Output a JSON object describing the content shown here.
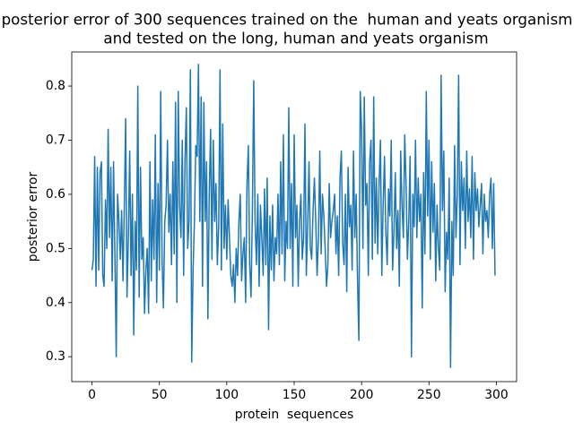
{
  "chart_data": {
    "type": "line",
    "title": [
      "posterior error of 300 sequences trained on the  human and yeats organism",
      "and tested on the long, human and yeats organism"
    ],
    "x_label": "protein  sequences",
    "y_label": "posterior error",
    "xlim": [
      -15,
      315
    ],
    "ylim": [
      0.254,
      0.863
    ],
    "xticks": [
      0,
      50,
      100,
      150,
      200,
      250,
      300
    ],
    "yticks": [
      0.3,
      0.4,
      0.5,
      0.6,
      0.7,
      0.8
    ],
    "grid": false,
    "series": [
      {
        "color": "#1f77b4",
        "x": [
          0,
          1,
          2,
          3,
          4,
          5,
          6,
          7,
          8,
          9,
          10,
          11,
          12,
          13,
          14,
          15,
          16,
          17,
          18,
          19,
          20,
          21,
          22,
          23,
          24,
          25,
          26,
          27,
          28,
          29,
          30,
          31,
          32,
          33,
          34,
          35,
          36,
          37,
          38,
          39,
          40,
          41,
          42,
          43,
          44,
          45,
          46,
          47,
          48,
          49,
          50,
          51,
          52,
          53,
          54,
          55,
          56,
          57,
          58,
          59,
          60,
          61,
          62,
          63,
          64,
          65,
          66,
          67,
          68,
          69,
          70,
          71,
          72,
          73,
          74,
          75,
          76,
          77,
          78,
          79,
          80,
          81,
          82,
          83,
          84,
          85,
          86,
          87,
          88,
          89,
          90,
          91,
          92,
          93,
          94,
          95,
          96,
          97,
          98,
          99,
          100,
          101,
          102,
          103,
          104,
          105,
          106,
          107,
          108,
          109,
          110,
          111,
          112,
          113,
          114,
          115,
          116,
          117,
          118,
          119,
          120,
          121,
          122,
          123,
          124,
          125,
          126,
          127,
          128,
          129,
          130,
          131,
          132,
          133,
          134,
          135,
          136,
          137,
          138,
          139,
          140,
          141,
          142,
          143,
          144,
          145,
          146,
          147,
          148,
          149,
          150,
          151,
          152,
          153,
          154,
          155,
          156,
          157,
          158,
          159,
          160,
          161,
          162,
          163,
          164,
          165,
          166,
          167,
          168,
          169,
          170,
          171,
          172,
          173,
          174,
          175,
          176,
          177,
          178,
          179,
          180,
          181,
          182,
          183,
          184,
          185,
          186,
          187,
          188,
          189,
          190,
          191,
          192,
          193,
          194,
          195,
          196,
          197,
          198,
          199,
          200,
          201,
          202,
          203,
          204,
          205,
          206,
          207,
          208,
          209,
          210,
          211,
          212,
          213,
          214,
          215,
          216,
          217,
          218,
          219,
          220,
          221,
          222,
          223,
          224,
          225,
          226,
          227,
          228,
          229,
          230,
          231,
          232,
          233,
          234,
          235,
          236,
          237,
          238,
          239,
          240,
          241,
          242,
          243,
          244,
          245,
          246,
          247,
          248,
          249,
          250,
          251,
          252,
          253,
          254,
          255,
          256,
          257,
          258,
          259,
          260,
          261,
          262,
          263,
          264,
          265,
          266,
          267,
          268,
          269,
          270,
          271,
          272,
          273,
          274,
          275,
          276,
          277,
          278,
          279,
          280,
          281,
          282,
          283,
          284,
          285,
          286,
          287,
          288,
          289,
          290,
          291,
          292,
          293,
          294,
          295,
          296,
          297,
          298,
          299
        ],
        "values": [
          0.46,
          0.48,
          0.67,
          0.43,
          0.65,
          0.46,
          0.64,
          0.66,
          0.45,
          0.43,
          0.59,
          0.5,
          0.72,
          0.52,
          0.65,
          0.44,
          0.66,
          0.49,
          0.3,
          0.6,
          0.55,
          0.48,
          0.57,
          0.44,
          0.58,
          0.74,
          0.41,
          0.52,
          0.68,
          0.45,
          0.6,
          0.34,
          0.55,
          0.46,
          0.8,
          0.41,
          0.65,
          0.48,
          0.52,
          0.38,
          0.46,
          0.5,
          0.38,
          0.66,
          0.44,
          0.59,
          0.48,
          0.71,
          0.4,
          0.62,
          0.46,
          0.79,
          0.48,
          0.39,
          0.55,
          0.58,
          0.7,
          0.53,
          0.6,
          0.47,
          0.66,
          0.49,
          0.77,
          0.4,
          0.79,
          0.58,
          0.52,
          0.7,
          0.45,
          0.66,
          0.76,
          0.5,
          0.55,
          0.83,
          0.29,
          0.46,
          0.55,
          0.69,
          0.67,
          0.84,
          0.55,
          0.78,
          0.43,
          0.77,
          0.55,
          0.66,
          0.37,
          0.6,
          0.72,
          0.48,
          0.7,
          0.55,
          0.62,
          0.47,
          0.54,
          0.83,
          0.46,
          0.73,
          0.5,
          0.58,
          0.48,
          0.59,
          0.52,
          0.45,
          0.43,
          0.47,
          0.4,
          0.5,
          0.45,
          0.55,
          0.6,
          0.44,
          0.49,
          0.52,
          0.4,
          0.62,
          0.69,
          0.47,
          0.41,
          0.57,
          0.81,
          0.55,
          0.47,
          0.6,
          0.43,
          0.58,
          0.52,
          0.45,
          0.61,
          0.47,
          0.63,
          0.35,
          0.56,
          0.46,
          0.58,
          0.44,
          0.52,
          0.49,
          0.6,
          0.47,
          0.66,
          0.49,
          0.71,
          0.44,
          0.55,
          0.5,
          0.76,
          0.5,
          0.62,
          0.43,
          0.71,
          0.52,
          0.58,
          0.43,
          0.55,
          0.6,
          0.48,
          0.52,
          0.73,
          0.45,
          0.54,
          0.66,
          0.5,
          0.48,
          0.57,
          0.63,
          0.55,
          0.45,
          0.52,
          0.68,
          0.49,
          0.6,
          0.56,
          0.5,
          0.43,
          0.47,
          0.62,
          0.52,
          0.55,
          0.57,
          0.6,
          0.49,
          0.56,
          0.45,
          0.63,
          0.68,
          0.51,
          0.47,
          0.6,
          0.42,
          0.65,
          0.54,
          0.58,
          0.46,
          0.68,
          0.52,
          0.6,
          0.44,
          0.33,
          0.79,
          0.72,
          0.5,
          0.78,
          0.58,
          0.62,
          0.45,
          0.66,
          0.7,
          0.48,
          0.78,
          0.51,
          0.63,
          0.49,
          0.62,
          0.7,
          0.45,
          0.58,
          0.67,
          0.53,
          0.47,
          0.61,
          0.56,
          0.7,
          0.46,
          0.53,
          0.64,
          0.5,
          0.57,
          0.43,
          0.68,
          0.58,
          0.52,
          0.71,
          0.62,
          0.48,
          0.55,
          0.67,
          0.3,
          0.6,
          0.54,
          0.7,
          0.52,
          0.63,
          0.55,
          0.6,
          0.39,
          0.64,
          0.49,
          0.79,
          0.56,
          0.7,
          0.48,
          0.66,
          0.53,
          0.62,
          0.44,
          0.58,
          0.5,
          0.46,
          0.82,
          0.57,
          0.68,
          0.42,
          0.53,
          0.48,
          0.63,
          0.28,
          0.55,
          0.45,
          0.69,
          0.52,
          0.6,
          0.82,
          0.47,
          0.66,
          0.57,
          0.63,
          0.5,
          0.68,
          0.55,
          0.61,
          0.52,
          0.67,
          0.48,
          0.64,
          0.57,
          0.61,
          0.54,
          0.58,
          0.62,
          0.49,
          0.6,
          0.55,
          0.57,
          0.52,
          0.6,
          0.63,
          0.5,
          0.62,
          0.45
        ]
      }
    ]
  }
}
